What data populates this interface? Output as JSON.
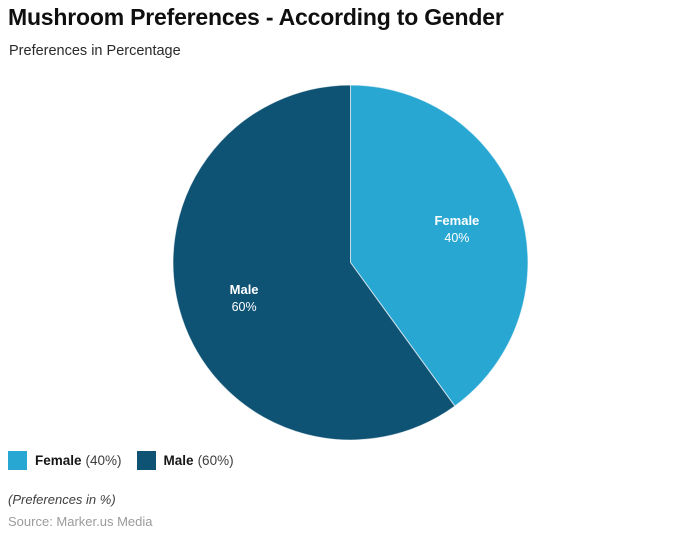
{
  "header": {
    "title": "Mushroom Preferences - According to Gender",
    "subtitle": "Preferences in Percentage"
  },
  "chart_data": {
    "type": "pie",
    "title": "Mushroom Preferences - According to Gender",
    "subtitle": "Preferences in Percentage",
    "labels": [
      "Female",
      "Male"
    ],
    "values": [
      40,
      60
    ],
    "value_labels": [
      "40%",
      "60%"
    ],
    "unit": "%",
    "colors": [
      "#29a7d3",
      "#0e5274"
    ],
    "start_angle_deg": 0,
    "direction": "clockwise",
    "slice_label_position": "inside",
    "legend_position": "bottom-left",
    "grid": false
  },
  "legend": {
    "items": [
      {
        "label": "Female",
        "value_text": "(40%)",
        "color": "#29a7d3"
      },
      {
        "label": "Male",
        "value_text": "(60%)",
        "color": "#0e5274"
      }
    ]
  },
  "footer": {
    "note": "(Preferences in %)",
    "source": "Source: Marker.us Media"
  }
}
